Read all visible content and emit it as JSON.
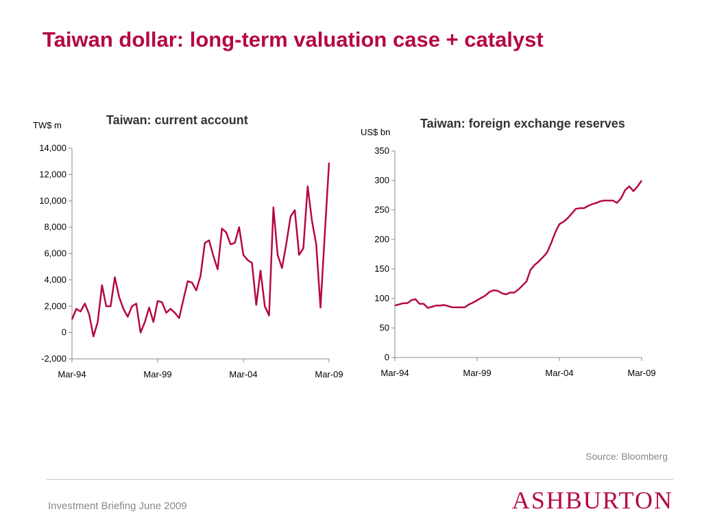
{
  "slide": {
    "title": "Taiwan dollar: long-term valuation case + catalyst",
    "source": "Source: Bloomberg",
    "footer": "Investment Briefing June 2009",
    "logo_text": "ASHBURTON",
    "accent_color": "#b5083f"
  },
  "chart_data": [
    {
      "type": "line",
      "title": "Taiwan: current account",
      "ylabel": "TW$ m",
      "ylim": [
        -2000,
        14000
      ],
      "yticks": [
        -2000,
        0,
        2000,
        4000,
        6000,
        8000,
        10000,
        12000,
        14000
      ],
      "ytick_labels": [
        "-2,000",
        "0",
        "2,000",
        "4,000",
        "6,000",
        "8,000",
        "10,000",
        "12,000",
        "14,000"
      ],
      "xlim": [
        1994.17,
        2009.17
      ],
      "xticks": [
        1994.17,
        1999.17,
        2004.17,
        2009.17
      ],
      "xtick_labels": [
        "Mar-94",
        "Mar-99",
        "Mar-04",
        "Mar-09"
      ],
      "grid": false,
      "series": [
        {
          "color": "#b5083f",
          "x": [
            1994.17,
            1994.42,
            1994.67,
            1994.92,
            1995.17,
            1995.42,
            1995.67,
            1995.92,
            1996.17,
            1996.42,
            1996.67,
            1996.92,
            1997.17,
            1997.42,
            1997.67,
            1997.92,
            1998.17,
            1998.42,
            1998.67,
            1998.92,
            1999.17,
            1999.42,
            1999.67,
            1999.92,
            2000.17,
            2000.42,
            2000.67,
            2000.92,
            2001.17,
            2001.42,
            2001.67,
            2001.92,
            2002.17,
            2002.42,
            2002.67,
            2002.92,
            2003.17,
            2003.42,
            2003.67,
            2003.92,
            2004.17,
            2004.42,
            2004.67,
            2004.92,
            2005.17,
            2005.42,
            2005.67,
            2005.92,
            2006.17,
            2006.42,
            2006.67,
            2006.92,
            2007.17,
            2007.42,
            2007.67,
            2007.92,
            2008.17,
            2008.42,
            2008.67,
            2008.92,
            2009.17
          ],
          "y": [
            1000,
            1800,
            1600,
            2200,
            1400,
            -300,
            800,
            3600,
            2000,
            2000,
            4200,
            2700,
            1800,
            1200,
            2000,
            2200,
            0,
            800,
            1900,
            800,
            2400,
            2300,
            1500,
            1800,
            1500,
            1100,
            2500,
            3900,
            3800,
            3200,
            4300,
            6800,
            7000,
            5800,
            4800,
            7900,
            7600,
            6700,
            6800,
            8000,
            5900,
            5500,
            5300,
            2100,
            4700,
            2000,
            1300,
            9500,
            5900,
            4900,
            6700,
            8800,
            9300,
            5900,
            6400,
            11100,
            8500,
            6700,
            1900,
            7500,
            12900
          ]
        }
      ]
    },
    {
      "type": "line",
      "title": "Taiwan: foreign exchange reserves",
      "ylabel": "US$ bn",
      "ylim": [
        0,
        350
      ],
      "yticks": [
        0,
        50,
        100,
        150,
        200,
        250,
        300,
        350
      ],
      "ytick_labels": [
        "0",
        "50",
        "100",
        "150",
        "200",
        "250",
        "300",
        "350"
      ],
      "xlim": [
        1994.17,
        2009.17
      ],
      "xticks": [
        1994.17,
        1999.17,
        2004.17,
        2009.17
      ],
      "xtick_labels": [
        "Mar-94",
        "Mar-99",
        "Mar-04",
        "Mar-09"
      ],
      "grid": false,
      "series": [
        {
          "color": "#b5083f",
          "x": [
            1994.17,
            1994.42,
            1994.67,
            1994.92,
            1995.17,
            1995.42,
            1995.67,
            1995.92,
            1996.17,
            1996.42,
            1996.67,
            1996.92,
            1997.17,
            1997.42,
            1997.67,
            1997.92,
            1998.17,
            1998.42,
            1998.67,
            1998.92,
            1999.17,
            1999.42,
            1999.67,
            1999.92,
            2000.17,
            2000.42,
            2000.67,
            2000.92,
            2001.17,
            2001.42,
            2001.67,
            2001.92,
            2002.17,
            2002.42,
            2002.67,
            2002.92,
            2003.17,
            2003.42,
            2003.67,
            2003.92,
            2004.17,
            2004.42,
            2004.67,
            2004.92,
            2005.17,
            2005.42,
            2005.67,
            2005.92,
            2006.17,
            2006.42,
            2006.67,
            2006.92,
            2007.17,
            2007.42,
            2007.67,
            2007.92,
            2008.17,
            2008.42,
            2008.67,
            2008.92,
            2009.17
          ],
          "y": [
            88,
            90,
            92,
            92,
            97,
            99,
            91,
            91,
            84,
            86,
            88,
            88,
            89,
            87,
            85,
            85,
            85,
            85,
            90,
            93,
            97,
            101,
            105,
            111,
            114,
            113,
            109,
            107,
            110,
            110,
            115,
            122,
            129,
            149,
            157,
            163,
            170,
            178,
            194,
            212,
            226,
            230,
            236,
            244,
            252,
            253,
            253,
            257,
            260,
            262,
            265,
            266,
            266,
            266,
            262,
            270,
            284,
            290,
            282,
            290,
            300
          ]
        }
      ]
    }
  ]
}
